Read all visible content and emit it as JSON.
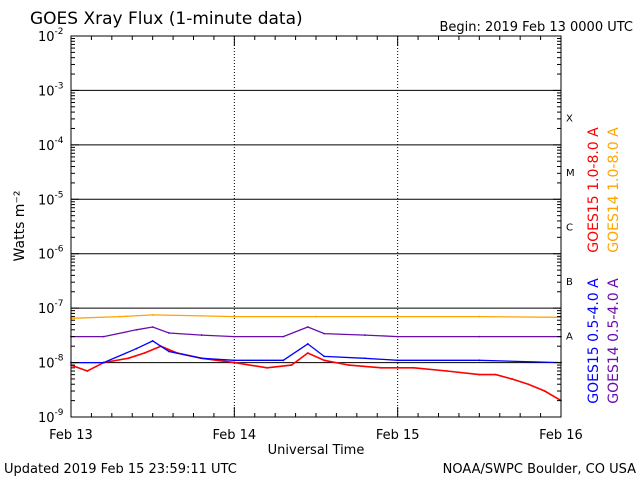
{
  "header": {
    "title": "GOES Xray Flux (1-minute data)",
    "begin_label": "Begin:  2019 Feb 13 0000 UTC"
  },
  "footer": {
    "updated": "Updated 2019 Feb 15 23:59:11 UTC",
    "credit": "NOAA/SWPC Boulder, CO USA"
  },
  "chart_data": {
    "type": "line",
    "title": "GOES Xray Flux (1-minute data)",
    "xlabel": "Universal Time",
    "ylabel": "Watts m⁻²",
    "yscale": "log",
    "ylim": [
      1e-09,
      0.01
    ],
    "xlim_days": [
      0,
      3
    ],
    "x_ticks": [
      {
        "day": 0,
        "label": "Feb 13"
      },
      {
        "day": 1,
        "label": "Feb 14"
      },
      {
        "day": 2,
        "label": "Feb 15"
      },
      {
        "day": 3,
        "label": "Feb 16"
      }
    ],
    "y_ticks": [
      {
        "exp": -9,
        "base": "10",
        "sup": "-9"
      },
      {
        "exp": -8,
        "base": "10",
        "sup": "-8"
      },
      {
        "exp": -7,
        "base": "10",
        "sup": "-7"
      },
      {
        "exp": -6,
        "base": "10",
        "sup": "-6"
      },
      {
        "exp": -5,
        "base": "10",
        "sup": "-5"
      },
      {
        "exp": -4,
        "base": "10",
        "sup": "-4"
      },
      {
        "exp": -3,
        "base": "10",
        "sup": "-3"
      },
      {
        "exp": -2,
        "base": "10",
        "sup": "-2"
      }
    ],
    "flare_classes": [
      {
        "label": "A",
        "exp": -8
      },
      {
        "label": "B",
        "exp": -7
      },
      {
        "label": "C",
        "exp": -6
      },
      {
        "label": "M",
        "exp": -5
      },
      {
        "label": "X",
        "exp": -4
      }
    ],
    "grid": true,
    "legend_position": "right",
    "series": [
      {
        "name": "GOES15 1.0-8.0 A",
        "color": "#ff0000",
        "x": [
          0,
          0.1,
          0.2,
          0.35,
          0.45,
          0.55,
          0.65,
          0.8,
          1.0,
          1.2,
          1.35,
          1.45,
          1.55,
          1.7,
          1.9,
          2.1,
          2.3,
          2.5,
          2.6,
          2.7,
          2.8,
          2.9,
          3.0
        ],
        "y": [
          9e-09,
          7e-09,
          1e-08,
          1.2e-08,
          1.5e-08,
          2e-08,
          1.5e-08,
          1.2e-08,
          1e-08,
          8e-09,
          9e-09,
          1.5e-08,
          1.1e-08,
          9e-09,
          8e-09,
          8e-09,
          7e-09,
          6e-09,
          6e-09,
          5e-09,
          4e-09,
          3e-09,
          2e-09
        ]
      },
      {
        "name": "GOES14 1.0-8.0 A",
        "color": "#ffa500",
        "x": [
          0,
          0.3,
          0.5,
          0.8,
          1.0,
          1.5,
          2.0,
          2.5,
          3.0
        ],
        "y": [
          6.5e-08,
          7e-08,
          7.5e-08,
          7.2e-08,
          7e-08,
          7e-08,
          7e-08,
          7e-08,
          6.8e-08
        ]
      },
      {
        "name": "GOES15 0.5-4.0 A",
        "color": "#0000ff",
        "x": [
          0,
          0.2,
          0.4,
          0.5,
          0.6,
          0.8,
          1.0,
          1.3,
          1.45,
          1.55,
          1.8,
          2.0,
          2.5,
          3.0
        ],
        "y": [
          1e-08,
          1e-08,
          1.8e-08,
          2.5e-08,
          1.6e-08,
          1.2e-08,
          1.1e-08,
          1.1e-08,
          2.2e-08,
          1.3e-08,
          1.2e-08,
          1.1e-08,
          1.1e-08,
          1e-08
        ]
      },
      {
        "name": "GOES14 0.5-4.0 A",
        "color": "#6a0dad",
        "x": [
          0,
          0.2,
          0.4,
          0.5,
          0.6,
          0.8,
          1.0,
          1.3,
          1.45,
          1.55,
          1.8,
          2.0,
          2.5,
          3.0
        ],
        "y": [
          3e-08,
          3e-08,
          4e-08,
          4.5e-08,
          3.5e-08,
          3.2e-08,
          3e-08,
          3e-08,
          4.5e-08,
          3.4e-08,
          3.2e-08,
          3e-08,
          3e-08,
          3e-08
        ]
      }
    ]
  }
}
